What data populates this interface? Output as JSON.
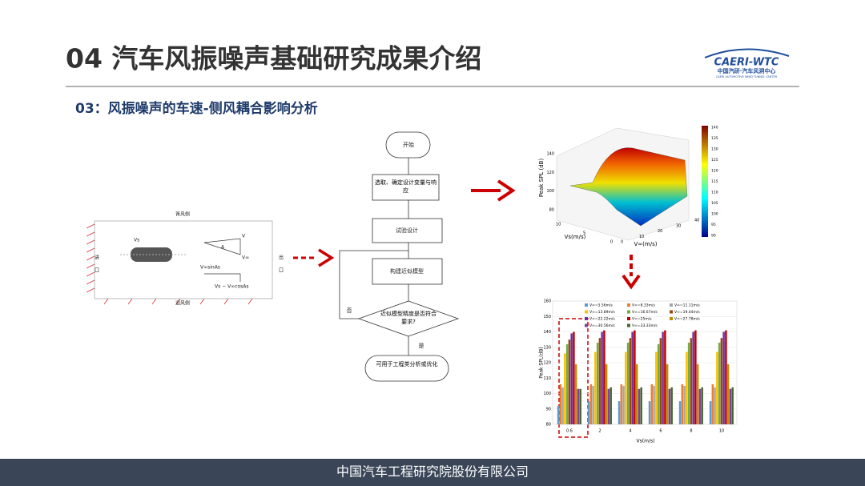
{
  "header": {
    "title": "04 汽车风振噪声基础研究成果介绍",
    "logo_name": "CAERI-WTC",
    "logo_cn": "中国汽研·汽车风洞中心",
    "logo_en": "CAERI AUTOMOTIVE WIND TUNNEL CENTER"
  },
  "subtitle": "03：风振噪声的车速-侧风耦合影响分析",
  "tunnel_diagram": {
    "leeward": "背风侧",
    "windward": "迎风侧",
    "inlet": "进口",
    "outlet": "出口",
    "v": "V",
    "angle": "A",
    "vs": "Vs",
    "vinf": "V∞",
    "sin": "V∞sinAs",
    "cos": "Vs − V∞cosAs"
  },
  "flowchart": {
    "nodes": [
      "开始",
      "选取、确定设计变量与响应",
      "试验设计",
      "构建近似模型",
      "近似模型精度是否符合要求?",
      "可用于工程类分析或优化"
    ],
    "no": "否",
    "yes": "是"
  },
  "surface_plot": {
    "zlabel": "Peak SPL (dB)",
    "zticks": [
      80,
      100,
      120,
      140
    ],
    "xlabel": "V∞(m/s)",
    "xticks": [
      0,
      10,
      20,
      30,
      40
    ],
    "ylabel": "Vs(m/s)",
    "yticks": [
      0,
      5,
      10
    ],
    "colorbar_ticks": [
      90,
      95,
      100,
      105,
      110,
      115,
      120,
      125,
      130,
      135,
      140
    ]
  },
  "chart_data": {
    "type": "bar",
    "categories": [
      "0.6",
      "2",
      "4",
      "6",
      "8",
      "10"
    ],
    "xlabel": "Vs(m/s)",
    "ylabel": "Peak SPL(dB)",
    "ylim": [
      80,
      160
    ],
    "yticks": [
      80,
      90,
      100,
      110,
      120,
      130,
      140,
      150,
      160
    ],
    "series": [
      {
        "name": "V∞=5.56m/s",
        "color": "#5b9bd5",
        "values": [
          92,
          95,
          95,
          95,
          95,
          95
        ]
      },
      {
        "name": "V∞=8.33m/s",
        "color": "#ed7d31",
        "values": [
          106,
          106,
          106,
          106,
          106,
          106
        ]
      },
      {
        "name": "V∞=11.11m/s",
        "color": "#a5a5a5",
        "values": [
          104,
          105,
          105,
          105,
          105,
          104
        ]
      },
      {
        "name": "V∞=13.89m/s",
        "color": "#ffc000",
        "values": [
          126,
          127,
          127,
          127,
          127,
          127
        ]
      },
      {
        "name": "V∞=16.67m/s",
        "color": "#70ad47",
        "values": [
          132,
          133,
          133,
          132,
          133,
          133
        ]
      },
      {
        "name": "V∞=19.44m/s",
        "color": "#9e480e",
        "values": [
          135,
          136,
          136,
          136,
          136,
          136
        ]
      },
      {
        "name": "V∞=22.22m/s",
        "color": "#7030a0",
        "values": [
          139,
          140,
          140,
          140,
          140,
          140
        ]
      },
      {
        "name": "V∞=25m/s",
        "color": "#c00000",
        "values": [
          140,
          141,
          141,
          141,
          141,
          141
        ]
      },
      {
        "name": "V∞=27.78m/s",
        "color": "#bf8f00",
        "values": [
          119,
          119,
          119,
          119,
          119,
          119
        ]
      },
      {
        "name": "V∞=30.56m/s",
        "color": "#7f3f9f",
        "values": [
          103,
          103,
          103,
          103,
          103,
          103
        ]
      },
      {
        "name": "V∞=33.33m/s",
        "color": "#43682b",
        "values": [
          103,
          104,
          104,
          104,
          104,
          104
        ]
      }
    ]
  },
  "footer": "中国汽车工程研究院股份有限公司"
}
